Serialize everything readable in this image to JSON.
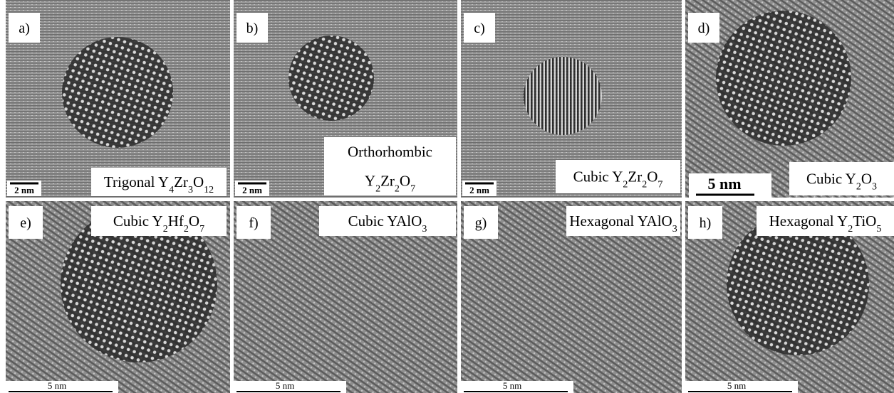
{
  "panels": [
    {
      "label": "a)",
      "caption": [
        [
          "Trigonal Y",
          "4",
          "Zr",
          "3",
          "O",
          "12"
        ]
      ],
      "scale_bar": "2 nm"
    },
    {
      "label": "b)",
      "caption": [
        [
          "Orthorhombic"
        ],
        [
          "Y",
          "2",
          "Zr",
          "2",
          "O",
          "7"
        ]
      ],
      "scale_bar": "2 nm"
    },
    {
      "label": "c)",
      "caption": [
        [
          "Cubic Y",
          "2",
          "Zr",
          "2",
          "O",
          "7"
        ]
      ],
      "scale_bar": "2 nm"
    },
    {
      "label": "d)",
      "caption": [
        [
          "Cubic Y",
          "2",
          "O",
          "3"
        ]
      ],
      "scale_bar": "5 nm"
    },
    {
      "label": "e)",
      "caption": [
        [
          "Cubic Y",
          "2",
          "Hf",
          "2",
          "O",
          "7"
        ]
      ],
      "scale_bar": "5 nm"
    },
    {
      "label": "f)",
      "caption": [
        [
          "Cubic YAlO",
          "3"
        ]
      ],
      "scale_bar": "5 nm"
    },
    {
      "label": "g)",
      "caption": [
        [
          "Hexagonal YAlO",
          "3"
        ]
      ],
      "scale_bar": "5 nm"
    },
    {
      "label": "h)",
      "caption": [
        [
          "Hexagonal Y",
          "2",
          "TiO",
          "5"
        ]
      ],
      "scale_bar": "5 nm"
    }
  ]
}
